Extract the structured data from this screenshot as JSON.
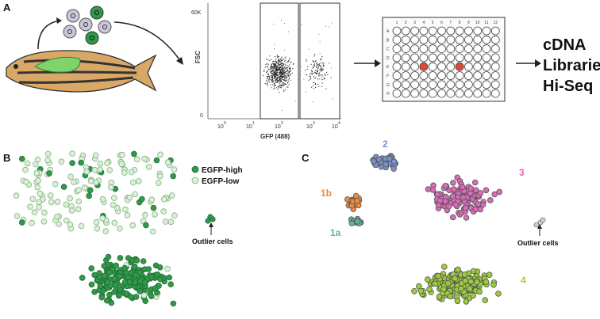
{
  "panel_a": {
    "letter": "A",
    "facs": {
      "y_axis_label": "FSC",
      "y_ticks": [
        "60K",
        "0"
      ],
      "x_axis_label": "GFP (488)",
      "x_ticks": [
        "10",
        "10",
        "10",
        "10",
        "10"
      ],
      "x_tick_exponents": [
        "0",
        "1",
        "2",
        "3",
        "4"
      ]
    },
    "plate": {
      "columns": [
        "1",
        "2",
        "3",
        "4",
        "5",
        "6",
        "7",
        "8",
        "9",
        "10",
        "11",
        "12"
      ],
      "rows": [
        "A",
        "B",
        "C",
        "D",
        "E",
        "F",
        "G",
        "H"
      ],
      "highlighted_wells": [
        {
          "row": 4,
          "col": 3
        },
        {
          "row": 4,
          "col": 7
        }
      ],
      "highlight_color": "#e0463a"
    },
    "output_lines": [
      "cDNA",
      "Libraries",
      "Hi-Seq"
    ]
  },
  "panel_b": {
    "letter": "B",
    "legend": [
      {
        "label": "EGFP-high",
        "color": "#2e9a4a"
      },
      {
        "label": "EGFP-low",
        "color": "#dcefd8"
      }
    ],
    "outlier_label": "Outlier cells"
  },
  "panel_c": {
    "letter": "C",
    "clusters": [
      {
        "label": "2",
        "color": "#7b8fc8"
      },
      {
        "label": "3",
        "color": "#d96bb8"
      },
      {
        "label": "1b",
        "color": "#f08a3c"
      },
      {
        "label": "1a",
        "color": "#5fb3a3"
      },
      {
        "label": "4",
        "color": "#9ccc3c"
      }
    ],
    "outlier_label": "Outlier cells"
  }
}
